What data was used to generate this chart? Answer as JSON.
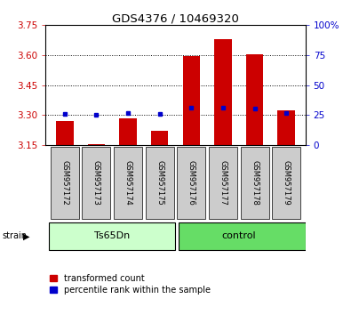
{
  "title": "GDS4376 / 10469320",
  "samples": [
    "GSM957172",
    "GSM957173",
    "GSM957174",
    "GSM957175",
    "GSM957176",
    "GSM957177",
    "GSM957178",
    "GSM957179"
  ],
  "red_values": [
    3.27,
    3.155,
    3.285,
    3.22,
    3.595,
    3.68,
    3.605,
    3.325
  ],
  "blue_values_pct": [
    26,
    25,
    27,
    26,
    31,
    31,
    30,
    27
  ],
  "ymin": 3.15,
  "ymax": 3.75,
  "yticks": [
    3.15,
    3.3,
    3.45,
    3.6,
    3.75
  ],
  "right_yticks": [
    0,
    25,
    50,
    75,
    100
  ],
  "bar_color": "#cc0000",
  "dot_color": "#0000cc",
  "legend_items": [
    "transformed count",
    "percentile rank within the sample"
  ],
  "base_value": 3.15,
  "ts65dn_color": "#ccffcc",
  "control_color": "#66dd66",
  "sample_box_color": "#cccccc"
}
